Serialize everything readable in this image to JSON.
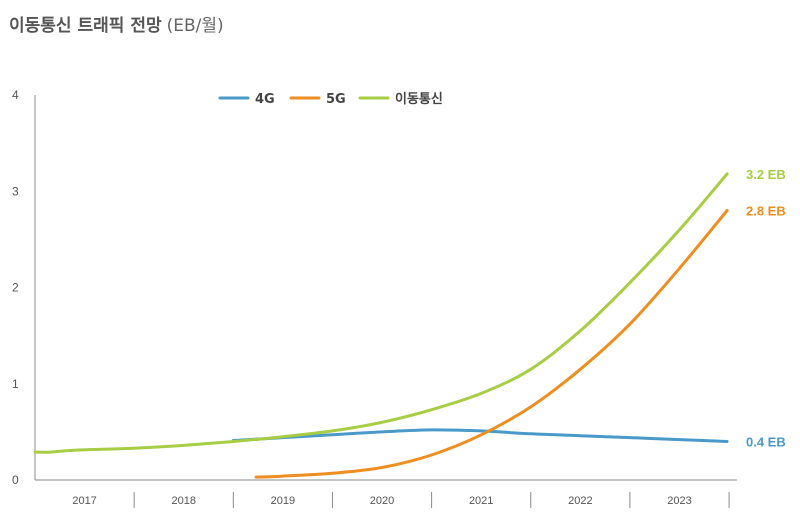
{
  "header": {
    "title": "이동통신 트래픽 전망",
    "unit": "(EB/월)"
  },
  "chart_data": {
    "type": "line",
    "ylim": [
      0,
      4
    ],
    "y_ticks": [
      "0",
      "1",
      "2",
      "3",
      "4"
    ],
    "categories": [
      "2017",
      "2018",
      "2019",
      "2020",
      "2021",
      "2022",
      "2023"
    ],
    "xlim": [
      2016.5,
      2023.58
    ],
    "legend_position": "top-center",
    "grid": false,
    "series": [
      {
        "name": "4G",
        "color": "#4a9ac9",
        "x": [
          2018.5,
          2019.0,
          2019.5,
          2020.0,
          2020.5,
          2021.0,
          2021.5,
          2022.0,
          2022.5,
          2023.0,
          2023.48
        ],
        "values": [
          0.41,
          0.44,
          0.47,
          0.5,
          0.52,
          0.51,
          0.48,
          0.46,
          0.44,
          0.42,
          0.4
        ],
        "end_label": "0.4 EB"
      },
      {
        "name": "5G",
        "color": "#ee8d20",
        "x": [
          2018.73,
          2019.0,
          2019.5,
          2020.0,
          2020.5,
          2021.0,
          2021.5,
          2022.0,
          2022.5,
          2023.0,
          2023.48
        ],
        "values": [
          0.03,
          0.04,
          0.07,
          0.13,
          0.26,
          0.47,
          0.76,
          1.15,
          1.62,
          2.2,
          2.8
        ],
        "end_label": "2.8 EB"
      },
      {
        "name": "이동통신",
        "color": "#a7cd45",
        "x": [
          2016.5,
          2016.65,
          2016.9,
          2017.5,
          2018.0,
          2018.5,
          2019.0,
          2019.5,
          2020.0,
          2020.5,
          2021.0,
          2021.5,
          2022.0,
          2022.5,
          2023.0,
          2023.48
        ],
        "values": [
          0.29,
          0.29,
          0.31,
          0.33,
          0.36,
          0.4,
          0.45,
          0.51,
          0.6,
          0.73,
          0.9,
          1.15,
          1.55,
          2.05,
          2.6,
          3.18
        ],
        "end_label": "3.2 EB"
      }
    ]
  }
}
